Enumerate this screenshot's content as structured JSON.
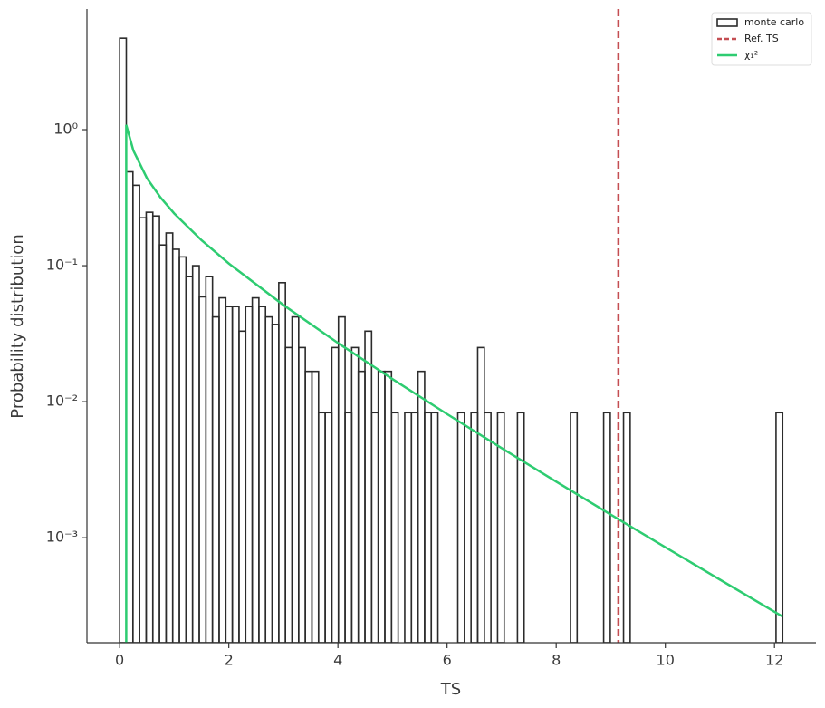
{
  "chart_data": {
    "type": "histogram",
    "xlabel": "TS",
    "ylabel": "Probability distribution",
    "yscale": "log",
    "xlim": [
      -0.6,
      12.76
    ],
    "ylim": [
      0.000169,
      7.7
    ],
    "xticks": [
      0,
      2,
      4,
      6,
      8,
      10,
      12
    ],
    "yticks": [
      {
        "value": 0.001,
        "label": "10⁻³"
      },
      {
        "value": 0.01,
        "label": "10⁻²"
      },
      {
        "value": 0.1,
        "label": "10⁻¹"
      },
      {
        "value": 1,
        "label": "10⁰"
      }
    ],
    "legend": "upper right",
    "histogram": {
      "name": "monte carlo",
      "color": "#2b2b2b",
      "bins": [
        0,
        0.1215,
        0.243,
        0.3645,
        0.486,
        0.6075,
        0.729,
        0.8505,
        0.972,
        1.0935,
        1.215,
        1.3365,
        1.458,
        1.5795,
        1.701,
        1.8225,
        1.944,
        2.0655,
        2.187,
        2.3085,
        2.43,
        2.5515,
        2.673,
        2.7945,
        2.916,
        3.0375,
        3.159,
        3.2805,
        3.402,
        3.5235,
        3.645,
        3.7665,
        3.888,
        4.0095,
        4.131,
        4.2525,
        4.374,
        4.4955,
        4.617,
        4.7385,
        4.86,
        4.9815,
        5.103,
        5.2245,
        5.346,
        5.4675,
        5.589,
        5.7105,
        5.832,
        5.9535,
        6.075,
        6.1965,
        6.318,
        6.4395,
        6.561,
        6.6825,
        6.804,
        6.9255,
        7.047,
        7.1685,
        7.29,
        7.4115,
        7.533,
        7.6545,
        7.776,
        7.8975,
        8.019,
        8.1405,
        8.262,
        8.3835,
        8.505,
        8.6265,
        8.748,
        8.8695,
        8.991,
        9.1125,
        9.234,
        9.3555,
        9.477,
        9.5985,
        9.72,
        9.8415,
        9.963,
        10.0845,
        10.206,
        10.3275,
        10.449,
        10.5705,
        10.692,
        10.8135,
        10.935,
        11.0565,
        11.178,
        11.2995,
        11.421,
        11.5425,
        11.664,
        11.7855,
        11.907,
        12.0285,
        12.15
      ],
      "values": [
        4.7,
        0.49,
        0.39,
        0.225,
        0.247,
        0.232,
        0.142,
        0.174,
        0.132,
        0.116,
        0.083,
        0.1,
        0.059,
        0.083,
        0.042,
        0.058,
        0.05,
        0.05,
        0.033,
        0.05,
        0.058,
        0.05,
        0.042,
        0.037,
        0.075,
        0.025,
        0.042,
        0.025,
        0.0167,
        0.0167,
        0.0083,
        0.0083,
        0.025,
        0.042,
        0.0083,
        0.025,
        0.0167,
        0.033,
        0.0083,
        0.0167,
        0.0167,
        0.0083,
        0,
        0.0083,
        0.0083,
        0.0167,
        0.0083,
        0.0083,
        0,
        0,
        0,
        0.0083,
        0,
        0.0083,
        0.025,
        0.0083,
        0,
        0.0083,
        0,
        0,
        0.0083,
        0,
        0,
        0,
        0,
        0,
        0,
        0,
        0.0083,
        0,
        0,
        0,
        0,
        0.0083,
        0,
        0,
        0.0083,
        0,
        0,
        0,
        0,
        0,
        0,
        0,
        0,
        0,
        0,
        0,
        0,
        0,
        0,
        0,
        0,
        0,
        0,
        0,
        0,
        0,
        0,
        0.0083
      ]
    },
    "ref_line": {
      "name": "Ref. TS",
      "x": 9.14,
      "color": "#c44e52"
    },
    "curve": {
      "name": "χ₁²",
      "color": "#2ecc71",
      "x": [
        0.12,
        0.12,
        0.25,
        0.5,
        0.75,
        1,
        1.5,
        2,
        3,
        4,
        5,
        6,
        7,
        8,
        9,
        10,
        11,
        12.15
      ],
      "values": [
        0.0001,
        1.085,
        0.704,
        0.4394,
        0.3166,
        0.242,
        0.1539,
        0.1038,
        0.0514,
        0.027,
        0.01465,
        0.00811,
        0.004554,
        0.002584,
        0.001477,
        0.00085,
        0.000492,
        0.000263
      ]
    }
  }
}
